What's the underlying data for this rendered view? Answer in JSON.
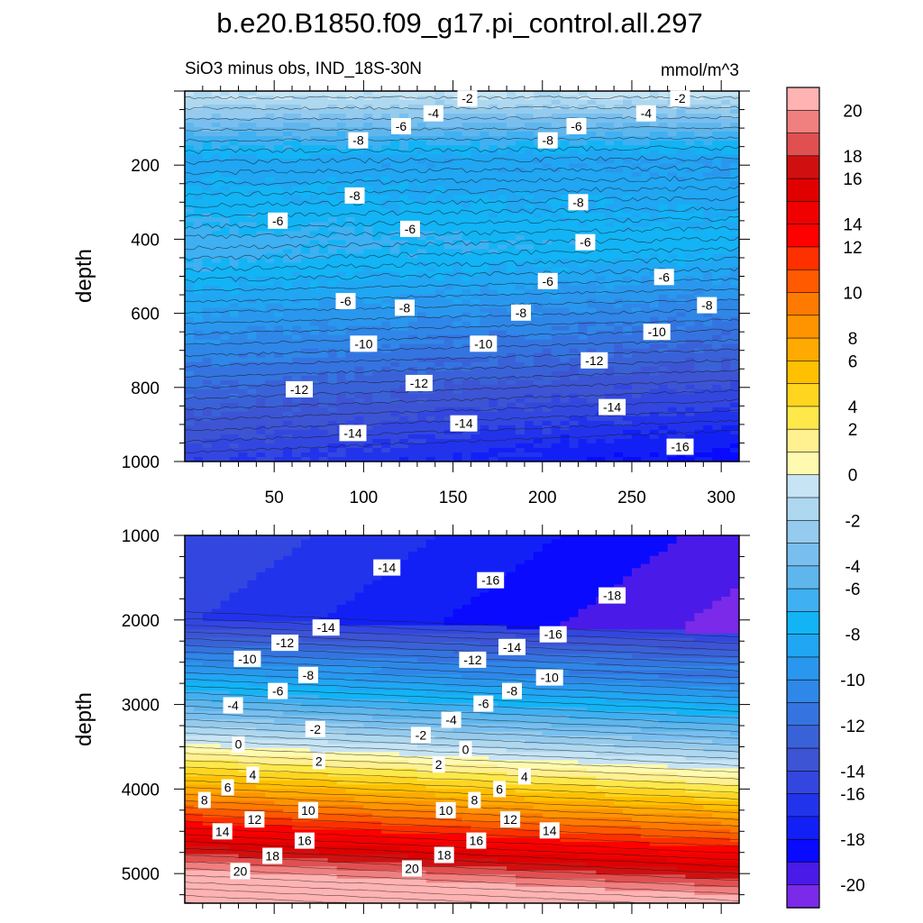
{
  "chart_data": {
    "type": "contour",
    "title": "b.e20.B1850.f09_g17.pi_control.all.297",
    "subtitle": "SiO3 minus obs, IND_18S-30N",
    "units": "mmol/m^3",
    "panels": [
      {
        "name": "upper",
        "ylabel": "depth",
        "xlim": [
          0,
          310
        ],
        "ylim": [
          1000,
          0
        ],
        "xticks": [
          50,
          100,
          150,
          200,
          250,
          300
        ],
        "yticks": [
          200,
          400,
          600,
          800,
          1000
        ],
        "contour_labels": [
          {
            "x": 158,
            "y": 20,
            "v": "-2"
          },
          {
            "x": 277,
            "y": 20,
            "v": "-2"
          },
          {
            "x": 139,
            "y": 60,
            "v": "-4"
          },
          {
            "x": 258,
            "y": 60,
            "v": "-4"
          },
          {
            "x": 121,
            "y": 95,
            "v": "-6"
          },
          {
            "x": 219,
            "y": 95,
            "v": "-6"
          },
          {
            "x": 97,
            "y": 133,
            "v": "-8"
          },
          {
            "x": 203,
            "y": 133,
            "v": "-8"
          },
          {
            "x": 95,
            "y": 282,
            "v": "-8"
          },
          {
            "x": 220,
            "y": 300,
            "v": "-8"
          },
          {
            "x": 52,
            "y": 350,
            "v": "-6"
          },
          {
            "x": 126,
            "y": 372,
            "v": "-6"
          },
          {
            "x": 224,
            "y": 408,
            "v": "-6"
          },
          {
            "x": 203,
            "y": 513,
            "v": "-6"
          },
          {
            "x": 268,
            "y": 502,
            "v": "-6"
          },
          {
            "x": 90,
            "y": 567,
            "v": "-6"
          },
          {
            "x": 292,
            "y": 578,
            "v": "-8"
          },
          {
            "x": 123,
            "y": 585,
            "v": "-8"
          },
          {
            "x": 188,
            "y": 598,
            "v": "-8"
          },
          {
            "x": 264,
            "y": 650,
            "v": "-10"
          },
          {
            "x": 100,
            "y": 682,
            "v": "-10"
          },
          {
            "x": 167,
            "y": 682,
            "v": "-10"
          },
          {
            "x": 229,
            "y": 727,
            "v": "-12"
          },
          {
            "x": 131,
            "y": 788,
            "v": "-12"
          },
          {
            "x": 64,
            "y": 805,
            "v": "-12"
          },
          {
            "x": 239,
            "y": 853,
            "v": "-14"
          },
          {
            "x": 156,
            "y": 897,
            "v": "-14"
          },
          {
            "x": 94,
            "y": 923,
            "v": "-14"
          },
          {
            "x": 277,
            "y": 960,
            "v": "-16"
          }
        ]
      },
      {
        "name": "lower",
        "ylabel": "depth",
        "xlim": [
          0,
          310
        ],
        "ylim": [
          5350,
          1000
        ],
        "yticks": [
          1000,
          2000,
          3000,
          4000,
          5000
        ],
        "contour_labels": [
          {
            "x": 113,
            "y": 1380,
            "v": "-14"
          },
          {
            "x": 171,
            "y": 1530,
            "v": "-16"
          },
          {
            "x": 239,
            "y": 1710,
            "v": "-18"
          },
          {
            "x": 79,
            "y": 2090,
            "v": "-14"
          },
          {
            "x": 206,
            "y": 2170,
            "v": "-16"
          },
          {
            "x": 56,
            "y": 2270,
            "v": "-12"
          },
          {
            "x": 183,
            "y": 2320,
            "v": "-14"
          },
          {
            "x": 35,
            "y": 2460,
            "v": "-10"
          },
          {
            "x": 161,
            "y": 2470,
            "v": "-12"
          },
          {
            "x": 69,
            "y": 2650,
            "v": "-8"
          },
          {
            "x": 204,
            "y": 2680,
            "v": "-10"
          },
          {
            "x": 52,
            "y": 2840,
            "v": "-6"
          },
          {
            "x": 183,
            "y": 2840,
            "v": "-8"
          },
          {
            "x": 27,
            "y": 3010,
            "v": "-4"
          },
          {
            "x": 167,
            "y": 2990,
            "v": "-6"
          },
          {
            "x": 149,
            "y": 3180,
            "v": "-4"
          },
          {
            "x": 73,
            "y": 3290,
            "v": "-2"
          },
          {
            "x": 132,
            "y": 3360,
            "v": "-2"
          },
          {
            "x": 30,
            "y": 3470,
            "v": "0"
          },
          {
            "x": 157,
            "y": 3530,
            "v": "0"
          },
          {
            "x": 75,
            "y": 3670,
            "v": "2"
          },
          {
            "x": 142,
            "y": 3710,
            "v": "2"
          },
          {
            "x": 38,
            "y": 3830,
            "v": "4"
          },
          {
            "x": 190,
            "y": 3850,
            "v": "4"
          },
          {
            "x": 24,
            "y": 3980,
            "v": "6"
          },
          {
            "x": 176,
            "y": 4000,
            "v": "6"
          },
          {
            "x": 11,
            "y": 4130,
            "v": "8"
          },
          {
            "x": 162,
            "y": 4130,
            "v": "8"
          },
          {
            "x": 69,
            "y": 4250,
            "v": "10"
          },
          {
            "x": 146,
            "y": 4250,
            "v": "10"
          },
          {
            "x": 39,
            "y": 4360,
            "v": "12"
          },
          {
            "x": 182,
            "y": 4360,
            "v": "12"
          },
          {
            "x": 21,
            "y": 4500,
            "v": "14"
          },
          {
            "x": 204,
            "y": 4490,
            "v": "14"
          },
          {
            "x": 67,
            "y": 4610,
            "v": "16"
          },
          {
            "x": 163,
            "y": 4610,
            "v": "16"
          },
          {
            "x": 49,
            "y": 4790,
            "v": "18"
          },
          {
            "x": 145,
            "y": 4780,
            "v": "18"
          },
          {
            "x": 31,
            "y": 4970,
            "v": "20"
          },
          {
            "x": 127,
            "y": 4940,
            "v": "20"
          }
        ]
      }
    ],
    "colorbar": {
      "levels": [
        "20",
        "18",
        "16",
        "14",
        "12",
        "10",
        "8",
        "6",
        "4",
        "2",
        "0",
        "-2",
        "-4",
        "-6",
        "-8",
        "-10",
        "-12",
        "-14",
        "-16",
        "-18",
        "-20"
      ],
      "colors": [
        "#ffb3b3",
        "#f08080",
        "#e05050",
        "#d01010",
        "#e00000",
        "#f00000",
        "#ff0000",
        "#ff3000",
        "#ff5a00",
        "#ff7a00",
        "#ff9400",
        "#ffaa00",
        "#ffc000",
        "#ffd520",
        "#ffe84a",
        "#fff090",
        "#fffab0",
        "#c6e4f4",
        "#aed8f0",
        "#94cbee",
        "#78bff0",
        "#5fb6ec",
        "#3fb0f2",
        "#12b4f5",
        "#20a6f3",
        "#2a97ee",
        "#2f87e8",
        "#3574e0",
        "#3a62d8",
        "#3d54d4",
        "#3347e0",
        "#2233ec",
        "#1220f6",
        "#0a0aff",
        "#4a1ae8",
        "#7a2ae8"
      ]
    }
  }
}
